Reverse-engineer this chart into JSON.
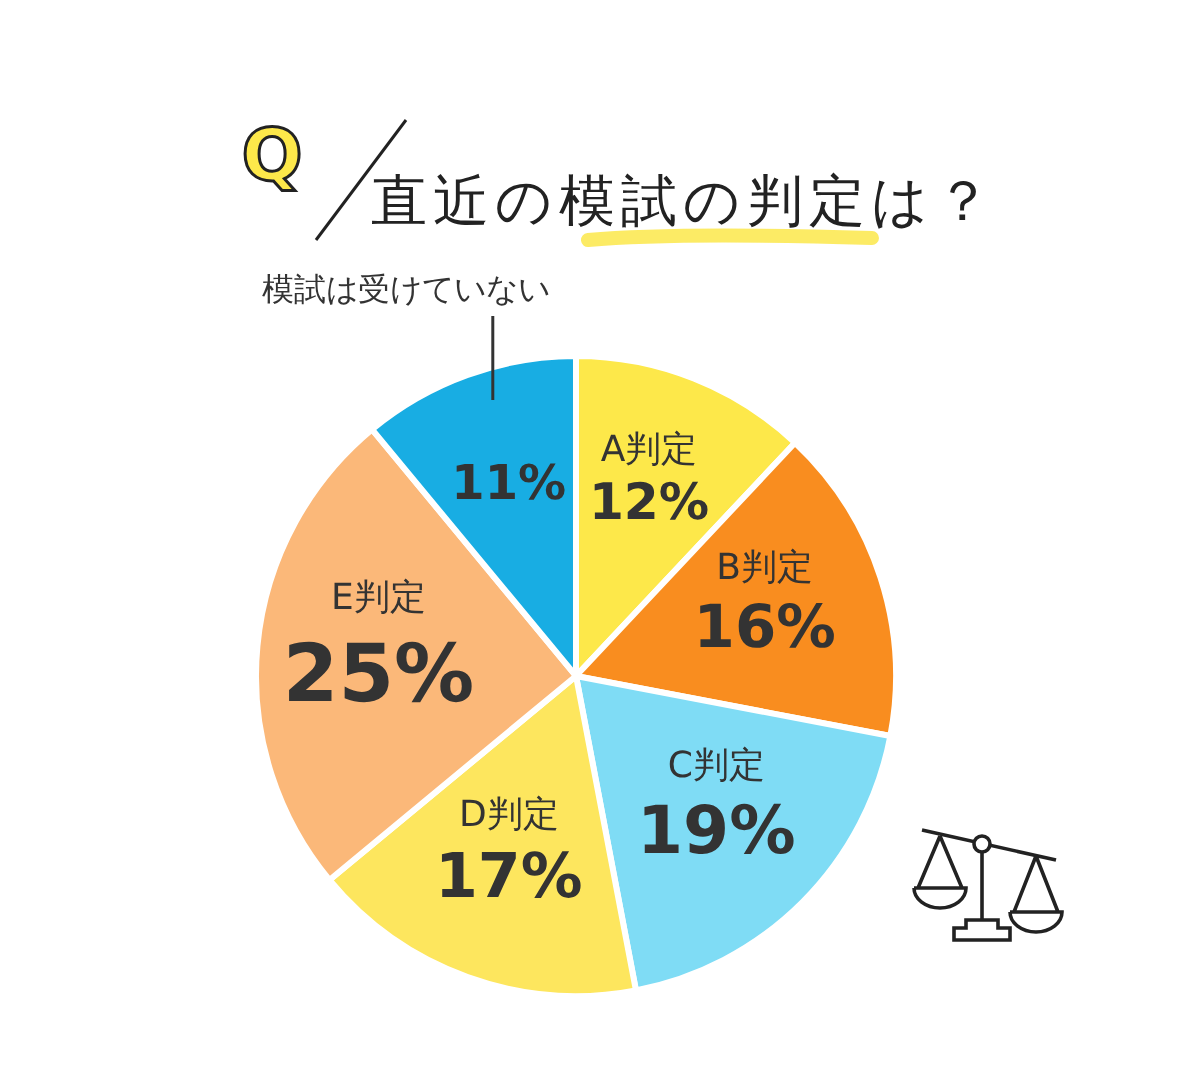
{
  "chart_data": {
    "type": "pie",
    "title": "直近の模試の判定は？",
    "categories": [
      "A判定",
      "B判定",
      "C判定",
      "D判定",
      "E判定",
      "模試は受けていない"
    ],
    "values": [
      12,
      16,
      19,
      17,
      25,
      11
    ],
    "value_labels": [
      "12%",
      "16%",
      "19%",
      "17%",
      "25%",
      "11%"
    ],
    "colors": [
      "#fde84a",
      "#f98d1f",
      "#7fdcf5",
      "#fde65e",
      "#fbb879",
      "#18ade3"
    ],
    "annotations": [
      "Q"
    ]
  }
}
